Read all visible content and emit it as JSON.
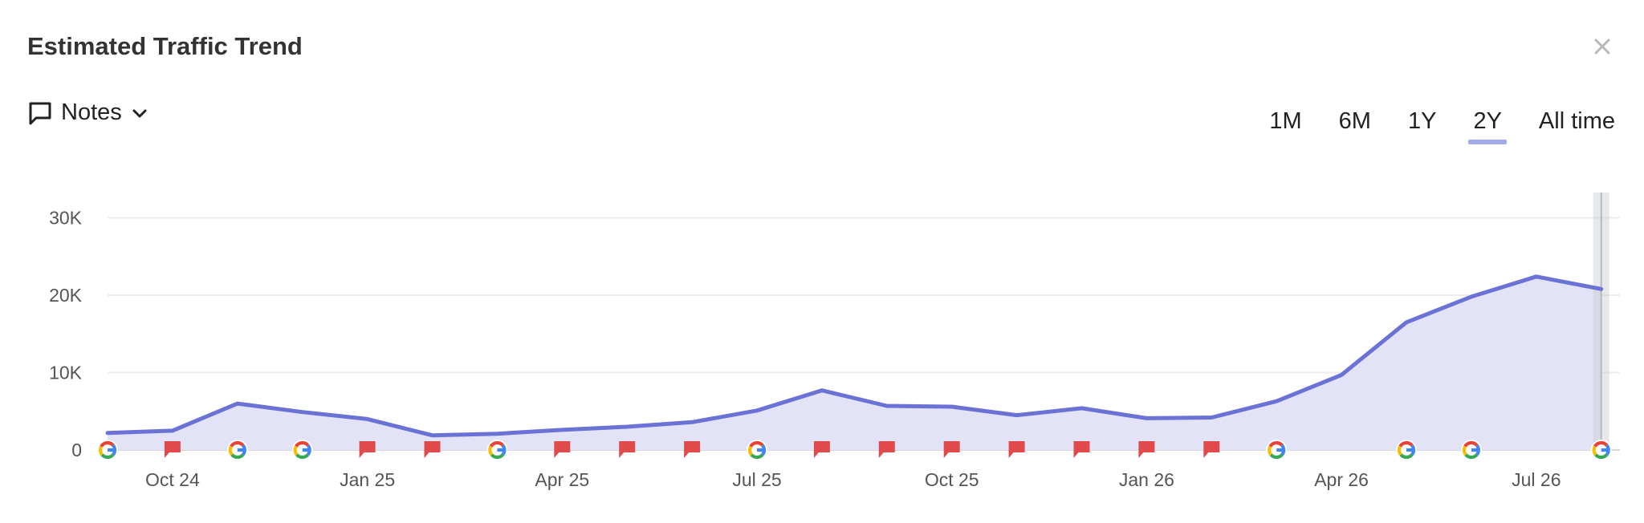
{
  "header": {
    "title": "Estimated Traffic Trend"
  },
  "notes": {
    "label": "Notes"
  },
  "range": {
    "options": [
      "1M",
      "6M",
      "1Y",
      "2Y",
      "All time"
    ],
    "selected": "2Y"
  },
  "colors": {
    "line": "#6b72d6",
    "area": "#e2e3f7",
    "grid": "#ececec",
    "note_flag": "#e04a4a",
    "google_blue": "#4285F4",
    "google_red": "#EA4335",
    "google_yellow": "#FBBC05",
    "google_green": "#34A853"
  },
  "chart_data": {
    "type": "area",
    "y_ticks": [
      0,
      10000,
      20000,
      30000
    ],
    "y_tick_labels": [
      "0",
      "10K",
      "20K",
      "30K"
    ],
    "ylim": [
      0,
      30000
    ],
    "x_tick_labels": [
      "Oct 24",
      "Jan 25",
      "Apr 25",
      "Jul 25",
      "Oct 25",
      "Jan 26",
      "Apr 26",
      "Jul 26"
    ],
    "x_tick_months": [
      1,
      4,
      7,
      10,
      13,
      16,
      19,
      22
    ],
    "series": [
      {
        "x_months": [
          0,
          1,
          2,
          3,
          4,
          5,
          6,
          7,
          8,
          9,
          10,
          11,
          12,
          13,
          14,
          15,
          16,
          17,
          18,
          19,
          20,
          21,
          22,
          23
        ],
        "values": [
          2200,
          2500,
          6000,
          4900,
          4000,
          1900,
          2100,
          2600,
          3000,
          3600,
          5100,
          7700,
          5700,
          5600,
          4500,
          5400,
          4100,
          4200,
          6300,
          9700,
          16500,
          19800,
          22400,
          20800
        ]
      }
    ],
    "markers": [
      {
        "m": 0,
        "type": "google"
      },
      {
        "m": 1,
        "type": "note"
      },
      {
        "m": 2,
        "type": "google"
      },
      {
        "m": 3,
        "type": "google"
      },
      {
        "m": 4,
        "type": "note"
      },
      {
        "m": 5,
        "type": "note"
      },
      {
        "m": 6,
        "type": "google"
      },
      {
        "m": 7,
        "type": "note"
      },
      {
        "m": 8,
        "type": "note"
      },
      {
        "m": 9,
        "type": "note"
      },
      {
        "m": 10,
        "type": "google"
      },
      {
        "m": 11,
        "type": "note"
      },
      {
        "m": 12,
        "type": "note"
      },
      {
        "m": 13,
        "type": "note"
      },
      {
        "m": 14,
        "type": "note"
      },
      {
        "m": 15,
        "type": "note"
      },
      {
        "m": 16,
        "type": "note"
      },
      {
        "m": 17,
        "type": "note"
      },
      {
        "m": 18,
        "type": "google"
      },
      {
        "m": 20,
        "type": "google"
      },
      {
        "m": 21,
        "type": "google"
      },
      {
        "m": 23,
        "type": "google"
      }
    ],
    "grid": true,
    "legend": "none"
  }
}
